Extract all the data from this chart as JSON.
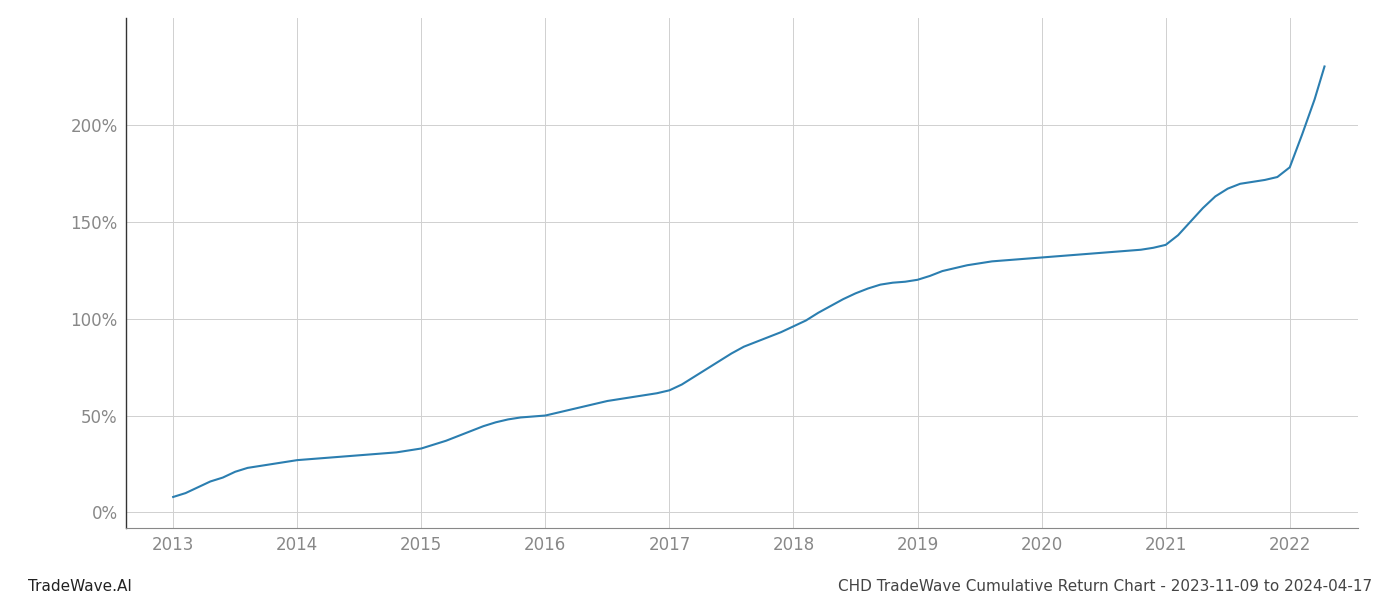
{
  "title_left": "TradeWave.AI",
  "title_right": "CHD TradeWave Cumulative Return Chart - 2023-11-09 to 2024-04-17",
  "line_color": "#2b7eb0",
  "background_color": "#ffffff",
  "grid_color": "#d0d0d0",
  "axis_color": "#888888",
  "spine_color": "#333333",
  "x_years": [
    2013,
    2014,
    2015,
    2016,
    2017,
    2018,
    2019,
    2020,
    2021,
    2022
  ],
  "y_ticks": [
    0,
    50,
    100,
    150,
    200
  ],
  "ylim": [
    -8,
    255
  ],
  "xlim": [
    2012.62,
    2022.55
  ],
  "data_x": [
    2013.0,
    2013.05,
    2013.1,
    2013.15,
    2013.2,
    2013.25,
    2013.3,
    2013.35,
    2013.4,
    2013.45,
    2013.5,
    2013.55,
    2013.6,
    2013.65,
    2013.7,
    2013.75,
    2013.8,
    2013.85,
    2013.9,
    2013.95,
    2014.0,
    2014.1,
    2014.2,
    2014.3,
    2014.4,
    2014.5,
    2014.6,
    2014.7,
    2014.8,
    2014.9,
    2015.0,
    2015.1,
    2015.2,
    2015.3,
    2015.4,
    2015.5,
    2015.6,
    2015.7,
    2015.8,
    2015.9,
    2016.0,
    2016.1,
    2016.2,
    2016.3,
    2016.4,
    2016.5,
    2016.6,
    2016.7,
    2016.8,
    2016.9,
    2017.0,
    2017.1,
    2017.2,
    2017.3,
    2017.4,
    2017.5,
    2017.6,
    2017.7,
    2017.8,
    2017.9,
    2018.0,
    2018.1,
    2018.2,
    2018.3,
    2018.4,
    2018.5,
    2018.6,
    2018.7,
    2018.8,
    2018.9,
    2019.0,
    2019.1,
    2019.2,
    2019.3,
    2019.4,
    2019.5,
    2019.6,
    2019.7,
    2019.8,
    2019.9,
    2020.0,
    2020.1,
    2020.2,
    2020.3,
    2020.4,
    2020.5,
    2020.6,
    2020.7,
    2020.8,
    2020.9,
    2021.0,
    2021.1,
    2021.2,
    2021.3,
    2021.4,
    2021.5,
    2021.6,
    2021.7,
    2021.8,
    2021.9,
    2022.0,
    2022.1,
    2022.2,
    2022.28
  ],
  "data_y": [
    8.0,
    9.0,
    10.0,
    11.5,
    13.0,
    14.5,
    16.0,
    17.0,
    18.0,
    19.5,
    21.0,
    22.0,
    23.0,
    23.5,
    24.0,
    24.5,
    25.0,
    25.5,
    26.0,
    26.5,
    27.0,
    27.5,
    28.0,
    28.5,
    29.0,
    29.5,
    30.0,
    30.5,
    31.0,
    32.0,
    33.0,
    35.0,
    37.0,
    39.5,
    42.0,
    44.5,
    46.5,
    48.0,
    49.0,
    49.5,
    50.0,
    51.5,
    53.0,
    54.5,
    56.0,
    57.5,
    58.5,
    59.5,
    60.5,
    61.5,
    63.0,
    66.0,
    70.0,
    74.0,
    78.0,
    82.0,
    85.5,
    88.0,
    90.5,
    93.0,
    96.0,
    99.0,
    103.0,
    106.5,
    110.0,
    113.0,
    115.5,
    117.5,
    118.5,
    119.0,
    120.0,
    122.0,
    124.5,
    126.0,
    127.5,
    128.5,
    129.5,
    130.0,
    130.5,
    131.0,
    131.5,
    132.0,
    132.5,
    133.0,
    133.5,
    134.0,
    134.5,
    135.0,
    135.5,
    136.5,
    138.0,
    143.0,
    150.0,
    157.0,
    163.0,
    167.0,
    169.5,
    170.5,
    171.5,
    173.0,
    178.0,
    195.0,
    213.0,
    230.0
  ]
}
